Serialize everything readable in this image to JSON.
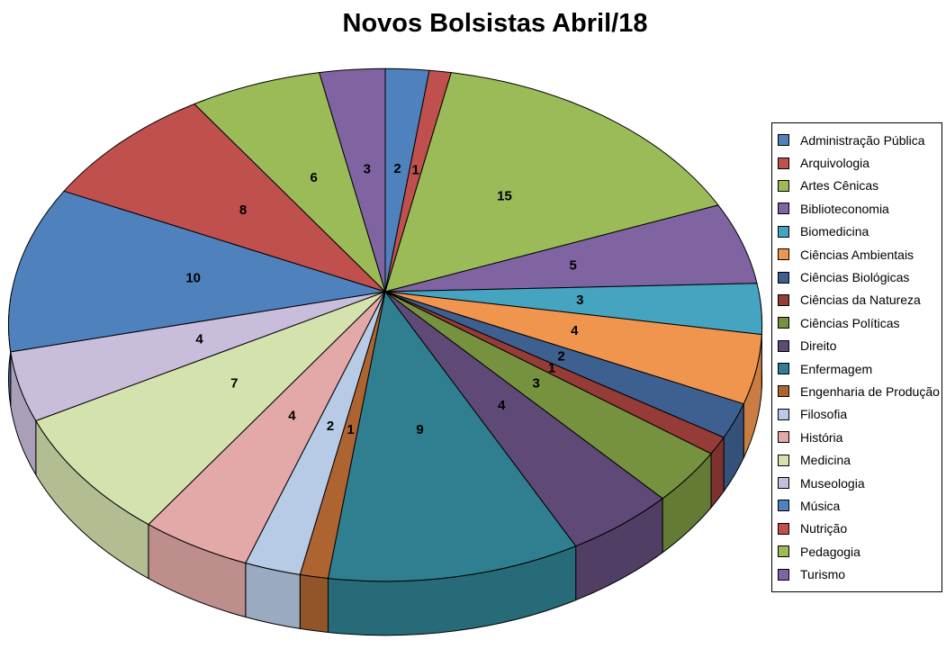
{
  "chart_data": {
    "type": "pie",
    "is_3d": true,
    "title": "Novos Bolsistas Abril/18",
    "legend_position": "right",
    "data_labels": "value",
    "start_angle": "12-oclock",
    "direction": "clockwise",
    "total": 94,
    "background_color": "#FFFFFF",
    "slice_border_color": "#000000",
    "points": [
      {
        "label": "Administração Pública",
        "value": 2,
        "color": "#4F81BD"
      },
      {
        "label": "Arquivologia",
        "value": 1,
        "color": "#C0504D"
      },
      {
        "label": "Artes Cênicas",
        "value": 15,
        "color": "#9BBB59"
      },
      {
        "label": "Biblioteconomia",
        "value": 5,
        "color": "#8064A2"
      },
      {
        "label": "Biomedicina",
        "value": 3,
        "color": "#45A5C0"
      },
      {
        "label": "Ciências Ambientais",
        "value": 4,
        "color": "#F0954E"
      },
      {
        "label": "Ciências Biológicas",
        "value": 2,
        "color": "#3E6090"
      },
      {
        "label": "Ciências da Natureza",
        "value": 1,
        "color": "#953B38"
      },
      {
        "label": "Ciências Políticas",
        "value": 3,
        "color": "#76923F"
      },
      {
        "label": "Direito",
        "value": 4,
        "color": "#5F4A77"
      },
      {
        "label": "Enfermagem",
        "value": 9,
        "color": "#2F7F90"
      },
      {
        "label": "Engenharia de Produção",
        "value": 1,
        "color": "#AE6431"
      },
      {
        "label": "Filosofia",
        "value": 2,
        "color": "#B7CBE6"
      },
      {
        "label": "História",
        "value": 4,
        "color": "#E2A9A8"
      },
      {
        "label": "Medicina",
        "value": 7,
        "color": "#D4E2AE"
      },
      {
        "label": "Museologia",
        "value": 4,
        "color": "#C9BDDC"
      },
      {
        "label": "Música",
        "value": 10,
        "color": "#4F81BD"
      },
      {
        "label": "Nutrição",
        "value": 8,
        "color": "#C0504D"
      },
      {
        "label": "Pedagogia",
        "value": 6,
        "color": "#9BBB59"
      },
      {
        "label": "Turismo",
        "value": 3,
        "color": "#8064A2"
      }
    ]
  }
}
